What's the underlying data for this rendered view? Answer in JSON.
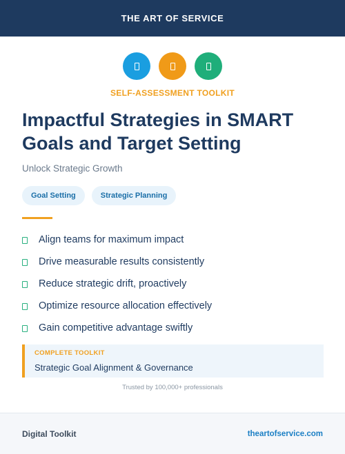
{
  "header": {
    "brand": "THE ART OF SERVICE",
    "color": "#1e3a5f"
  },
  "icons": [
    {
      "name": "blue-badge-icon",
      "color": "#1a9ee0"
    },
    {
      "name": "orange-badge-icon",
      "color": "#f09a18"
    },
    {
      "name": "green-badge-icon",
      "color": "#1fae7a"
    }
  ],
  "kicker": "SELF-ASSESSMENT TOOLKIT",
  "title": "Impactful Strategies in SMART Goals and Target Setting",
  "subtitle": "Unlock Strategic Growth",
  "tags": [
    "Goal Setting",
    "Strategic Planning"
  ],
  "benefits": [
    "Align teams for maximum impact",
    "Drive measurable results consistently",
    "Reduce strategic drift, proactively",
    "Optimize resource allocation effectively",
    "Gain competitive advantage swiftly"
  ],
  "callout": {
    "label": "COMPLETE TOOLKIT",
    "text": "Strategic Goal Alignment & Governance"
  },
  "trust": "Trusted by 100,000+ professionals",
  "footer": {
    "left": "Digital Toolkit",
    "right": "theartofservice.com"
  },
  "colors": {
    "accent_orange": "#f0a020",
    "check_green": "#28b07f",
    "link_blue": "#1b7fc4"
  }
}
